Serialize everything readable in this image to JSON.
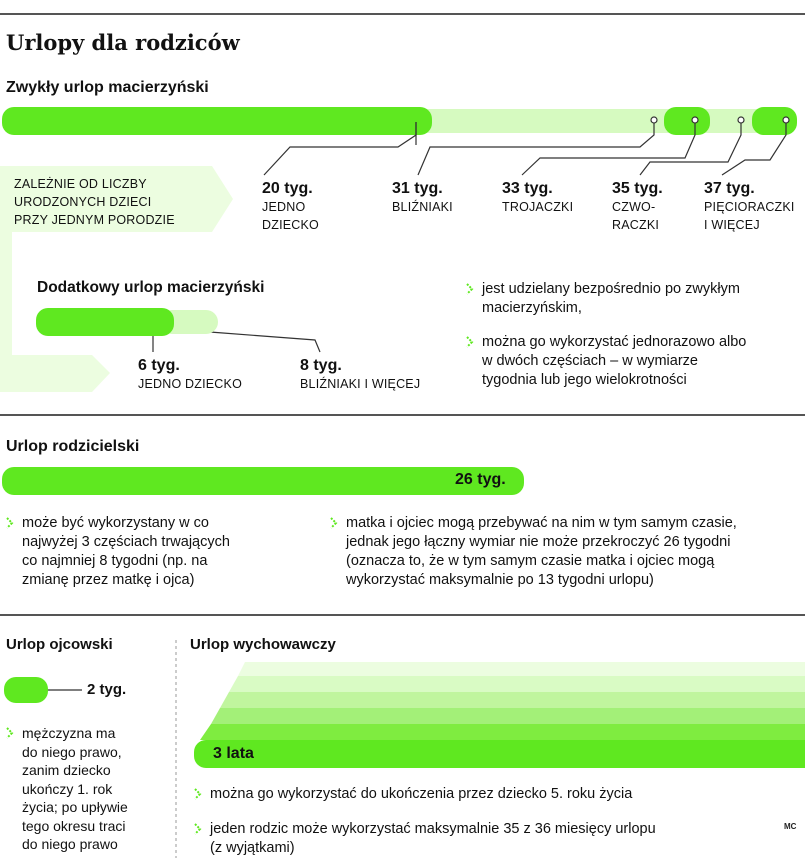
{
  "title": "Urlopy dla rodziców",
  "maternity": {
    "heading": "Zwykły urlop macierzyński",
    "box_label": [
      "ZALEŻNIE OD LICZBY",
      "URODZONYCH DZIECI",
      "PRZY JEDNYM PORODZIE"
    ],
    "options": [
      {
        "weeks": "20 tyg.",
        "desc": [
          "JEDNO",
          "DZIECKO"
        ]
      },
      {
        "weeks": "31 tyg.",
        "desc": [
          "BLIŹNIAKI"
        ]
      },
      {
        "weeks": "33 tyg.",
        "desc": [
          "TROJACZKI"
        ]
      },
      {
        "weeks": "35 tyg.",
        "desc": [
          "CZWO-",
          "RACZKI"
        ]
      },
      {
        "weeks": "37 tyg.",
        "desc": [
          "PIĘCIORACZKI",
          "I WIĘCEJ"
        ]
      }
    ]
  },
  "additional": {
    "heading": "Dodatkowy urlop macierzyński",
    "options": [
      {
        "weeks": "6 tyg.",
        "desc": "JEDNO DZIECKO"
      },
      {
        "weeks": "8 tyg.",
        "desc": "BLIŹNIAKI I WIĘCEJ"
      }
    ],
    "bullets": [
      [
        "jest udzielany bezpośrednio po zwykłym",
        "macierzyńskim,"
      ],
      [
        "można go wykorzystać jednorazowo albo",
        "w dwóch częściach – w wymiarze",
        "tygodnia lub jego wielokrotności"
      ]
    ]
  },
  "parental": {
    "heading": "Urlop rodzicielski",
    "weeks": "26 tyg.",
    "bullets": [
      [
        "może być wykorzystany w co",
        "najwyżej 3 częściach trwających",
        "co najmniej 8 tygodni (np. na",
        "zmianę przez matkę i ojca)"
      ],
      [
        "matka i ojciec mogą przebywać na nim w tym samym czasie,",
        "jednak jego łączny wymiar nie może przekroczyć 26 tygodni",
        "(oznacza to, że w tym samym czasie matka i ojciec mogą",
        "wykorzystać maksymalnie po 13 tygodni urlopu)"
      ]
    ]
  },
  "paternity": {
    "heading": "Urlop ojcowski",
    "weeks": "2 tyg.",
    "bullet": [
      "mężczyzna ma",
      "do niego prawo,",
      "zanim dziecko",
      "ukończy 1. rok",
      "życia; po upływie",
      "tego okresu traci",
      "do niego prawo"
    ]
  },
  "childcare": {
    "heading": "Urlop wychowawczy",
    "duration": "3 lata",
    "bullets": [
      [
        "można go wykorzystać do ukończenia przez dziecko 5. roku życia"
      ],
      [
        "jeden rodzic może wykorzystać maksymalnie 35 z 36 miesięcy urlopu",
        "(z wyjątkami)"
      ]
    ]
  },
  "credit": "MC",
  "colors": {
    "green": "#5fe820",
    "light_green": "#d6fac0",
    "lighter_green": "#ecfde0",
    "rule": "#555555"
  }
}
